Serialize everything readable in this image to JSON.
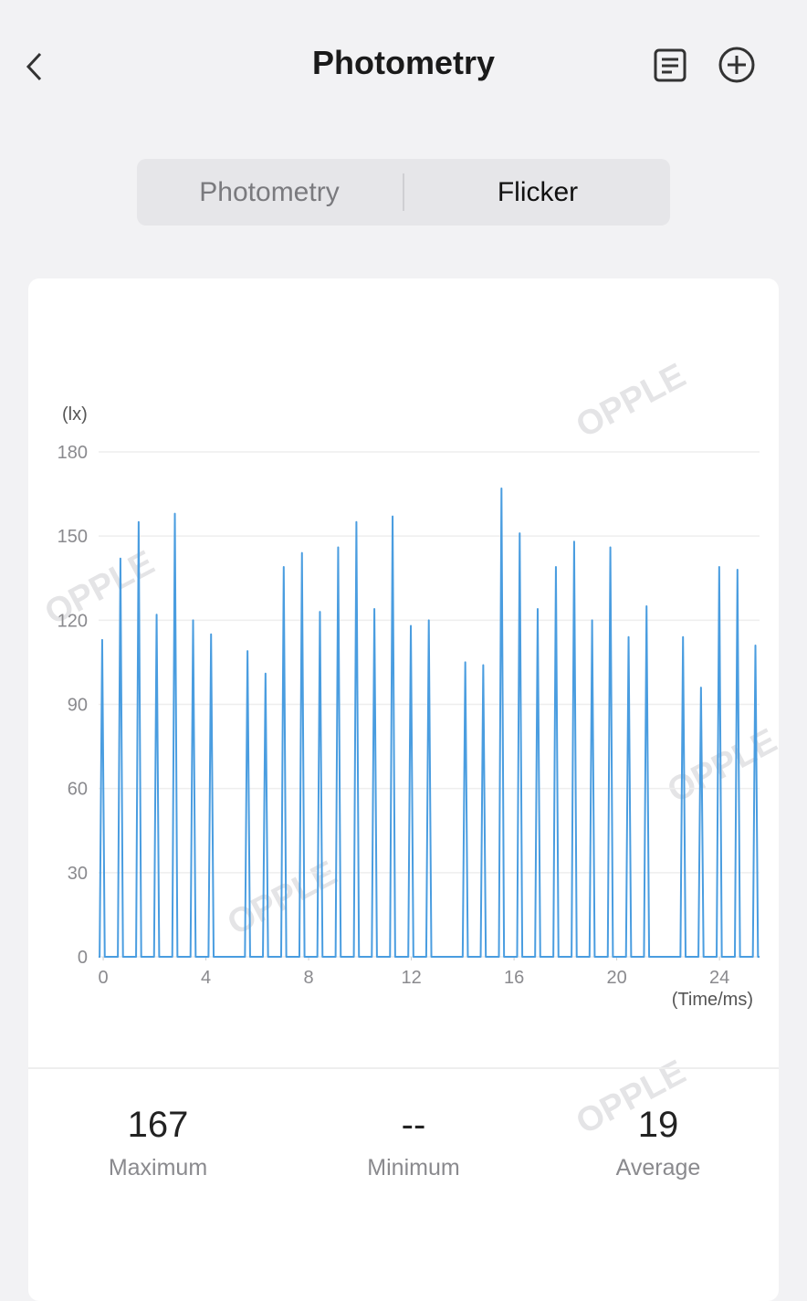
{
  "header": {
    "title": "Photometry"
  },
  "tabs": [
    "Photometry",
    "Flicker"
  ],
  "watermark": "OPPLE",
  "chart_data": {
    "type": "line",
    "y_label": "(lx)",
    "x_label": "(Time/ms)",
    "color": "#4a9de0",
    "grid": true,
    "xlim": [
      -0.18,
      25.56
    ],
    "xticks": [
      0,
      4,
      8,
      12,
      16,
      20,
      24
    ],
    "ylim": [
      0,
      180
    ],
    "yticks": [
      0,
      30,
      60,
      90,
      120,
      150,
      180
    ],
    "x": [
      -0.18,
      -0.14,
      -0.04,
      0.06,
      0.57,
      0.67,
      0.77,
      1.28,
      1.38,
      1.48,
      1.98,
      2.08,
      2.18,
      2.69,
      2.79,
      2.89,
      3.4,
      3.5,
      3.6,
      4.1,
      4.2,
      4.3,
      5.52,
      5.62,
      5.72,
      6.22,
      6.32,
      6.42,
      6.93,
      7.03,
      7.13,
      7.64,
      7.74,
      7.84,
      8.34,
      8.44,
      8.54,
      9.05,
      9.15,
      9.25,
      9.76,
      9.86,
      9.96,
      10.46,
      10.56,
      10.66,
      11.17,
      11.27,
      11.37,
      11.88,
      11.98,
      12.08,
      12.58,
      12.68,
      12.78,
      14,
      14.1,
      14.2,
      14.7,
      14.8,
      14.9,
      15.41,
      15.51,
      15.61,
      16.12,
      16.22,
      16.32,
      16.82,
      16.92,
      17.02,
      17.53,
      17.63,
      17.73,
      18.24,
      18.34,
      18.44,
      18.94,
      19.04,
      19.14,
      19.65,
      19.75,
      19.85,
      20.36,
      20.46,
      20.56,
      21.06,
      21.16,
      21.26,
      22.48,
      22.58,
      22.68,
      23.18,
      23.28,
      23.38,
      23.89,
      23.99,
      24.09,
      24.6,
      24.7,
      24.8,
      25.3,
      25.4,
      25.5,
      25.56
    ],
    "values": [
      0,
      0,
      113,
      0,
      0,
      142,
      0,
      0,
      155,
      0,
      0,
      122,
      0,
      0,
      158,
      0,
      0,
      120,
      0,
      0,
      115,
      0,
      0,
      109,
      0,
      0,
      101,
      0,
      0,
      139,
      0,
      0,
      144,
      0,
      0,
      123,
      0,
      0,
      146,
      0,
      0,
      155,
      0,
      0,
      124,
      0,
      0,
      157,
      0,
      0,
      118,
      0,
      0,
      120,
      0,
      0,
      105,
      0,
      0,
      104,
      0,
      0,
      167,
      0,
      0,
      151,
      0,
      0,
      124,
      0,
      0,
      139,
      0,
      0,
      148,
      0,
      0,
      120,
      0,
      0,
      146,
      0,
      0,
      114,
      0,
      0,
      125,
      0,
      0,
      114,
      0,
      0,
      96,
      0,
      0,
      139,
      0,
      0,
      138,
      0,
      0,
      111,
      0,
      0
    ]
  },
  "stats": [
    {
      "value": 167,
      "label": "Maximum"
    },
    {
      "value": "--",
      "label": "Minimum"
    },
    {
      "value": 19,
      "label": "Average"
    }
  ]
}
